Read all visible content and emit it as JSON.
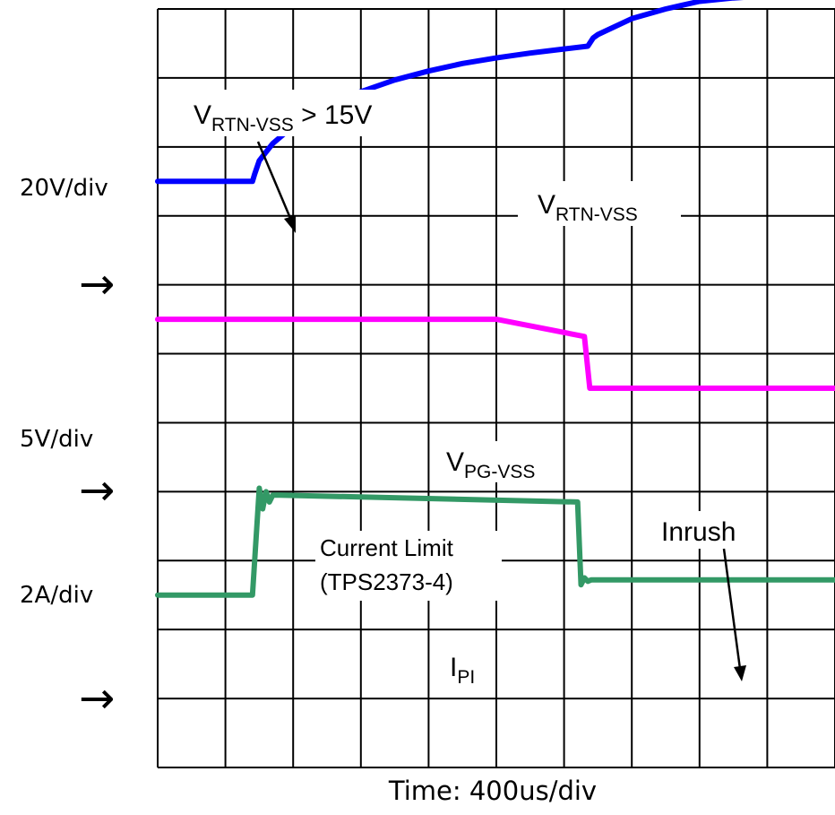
{
  "chart_data": {
    "type": "line",
    "title": "",
    "xlabel": "Time: 400us/div",
    "x_divisions": 10,
    "y_divisions": 11,
    "grid": true,
    "channels": [
      {
        "scale_label": "20V/div",
        "marker": "→"
      },
      {
        "scale_label": "5V/div",
        "marker": "→"
      },
      {
        "scale_label": "2A/div",
        "marker": "→"
      }
    ],
    "series": [
      {
        "name_main": "V",
        "name_sub": "RTN-VSS",
        "color": "#0000ff",
        "x_div": [
          0,
          1.4,
          1.43,
          1.5,
          1.7,
          2.0,
          2.5,
          3.0,
          3.5,
          4.0,
          4.5,
          5.0,
          5.5,
          6.0,
          6.35,
          6.43,
          6.5,
          7.0,
          7.5,
          8.0,
          8.5,
          9.0,
          10.0
        ],
        "y_div": [
          8.5,
          8.5,
          8.6,
          8.8,
          9.05,
          9.3,
          9.58,
          9.8,
          9.97,
          10.1,
          10.21,
          10.29,
          10.36,
          10.42,
          10.46,
          10.58,
          10.63,
          10.86,
          11.0,
          11.11,
          11.16,
          11.19,
          11.22
        ]
      },
      {
        "name_main": "V",
        "name_sub": "PG-VSS",
        "color": "#ff00ff",
        "x_div": [
          0,
          5.0,
          6.3,
          6.38,
          10.0
        ],
        "y_div": [
          6.5,
          6.5,
          6.25,
          5.5,
          5.5
        ]
      },
      {
        "name_main": "I",
        "name_sub": "PI",
        "color": "#339966",
        "x_div": [
          0,
          1.4,
          1.5,
          1.55,
          1.6,
          1.65,
          1.7,
          1.8,
          6.2,
          6.25,
          6.3,
          6.35,
          6.4,
          6.5,
          10.0
        ],
        "y_div": [
          2.5,
          2.5,
          4.05,
          3.75,
          4.0,
          3.85,
          3.95,
          3.95,
          3.85,
          2.65,
          2.75,
          2.7,
          2.72,
          2.72,
          2.72
        ]
      }
    ],
    "annotations": [
      {
        "main": "V",
        "sub": "RTN-VSS",
        "suffix": " > 15V"
      },
      {
        "main": "Current Limit",
        "line2": "(TPS2373-4)"
      },
      {
        "main": "Inrush"
      }
    ]
  }
}
